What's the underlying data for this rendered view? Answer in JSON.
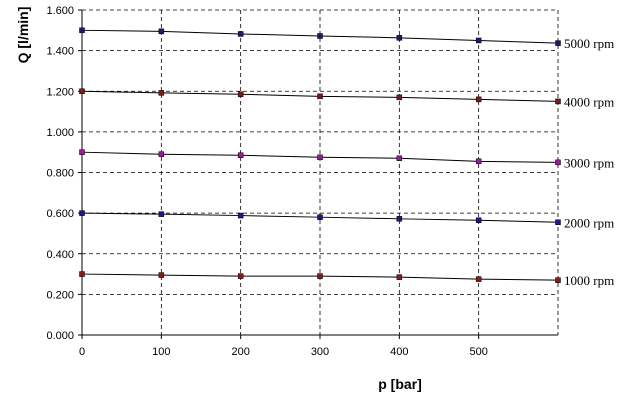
{
  "chart_data": {
    "type": "line",
    "xlabel": "p [bar]",
    "ylabel": "Q [l/min]",
    "xlim": [
      0,
      600
    ],
    "ylim": [
      0,
      1.6
    ],
    "x_ticks": [
      "0",
      "100",
      "200",
      "300",
      "400",
      "500"
    ],
    "y_ticks": [
      "0.000",
      "0.200",
      "0.400",
      "0.600",
      "0.800",
      "1.000",
      "1.200",
      "1.400",
      "1.600"
    ],
    "grid": true,
    "x": [
      0,
      100,
      200,
      300,
      400,
      500,
      600
    ],
    "series": [
      {
        "name": "5000 rpm",
        "values": [
          1.5,
          1.495,
          1.482,
          1.472,
          1.463,
          1.45,
          1.437
        ],
        "color": "#1a1a6e"
      },
      {
        "name": "4000 rpm",
        "values": [
          1.2,
          1.192,
          1.185,
          1.175,
          1.17,
          1.16,
          1.15
        ],
        "color": "#7a1a1a"
      },
      {
        "name": "3000 rpm",
        "values": [
          0.9,
          0.89,
          0.885,
          0.875,
          0.87,
          0.855,
          0.85
        ],
        "color": "#9a1a9a"
      },
      {
        "name": "2000 rpm",
        "values": [
          0.6,
          0.595,
          0.588,
          0.58,
          0.572,
          0.565,
          0.555
        ],
        "color": "#1a1a8a"
      },
      {
        "name": "1000 rpm",
        "values": [
          0.3,
          0.295,
          0.29,
          0.29,
          0.285,
          0.275,
          0.27
        ],
        "color": "#8a1a1a"
      }
    ]
  }
}
